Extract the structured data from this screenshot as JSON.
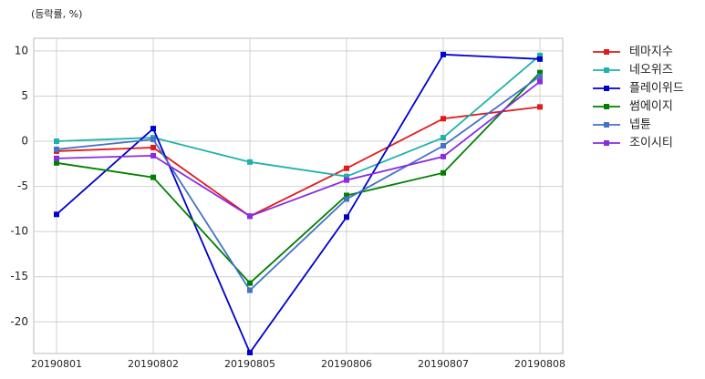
{
  "chart_data": {
    "type": "line",
    "annotation": "(등락률, %)",
    "categories": [
      "20190801",
      "20190802",
      "20190805",
      "20190806",
      "20190807",
      "20190808"
    ],
    "series": [
      {
        "name": "테마지수",
        "color": "#e31a1c",
        "values": [
          -1.1,
          -0.7,
          -8.3,
          -3.0,
          2.5,
          3.8
        ]
      },
      {
        "name": "네오위즈",
        "color": "#20b2aa",
        "values": [
          0.0,
          0.4,
          -2.3,
          -3.9,
          0.4,
          9.5
        ]
      },
      {
        "name": "플레이위드",
        "color": "#0000cd",
        "values": [
          -8.1,
          1.4,
          -23.4,
          -8.4,
          9.6,
          9.1
        ]
      },
      {
        "name": "썸에이지",
        "color": "#008000",
        "values": [
          -2.4,
          -4.0,
          -15.7,
          -6.0,
          -3.5,
          7.6
        ]
      },
      {
        "name": "넵튠",
        "color": "#4472c4",
        "values": [
          -0.9,
          0.2,
          -16.5,
          -6.4,
          -0.5,
          7.2
        ]
      },
      {
        "name": "조이시티",
        "color": "#8a2be2",
        "values": [
          -1.9,
          -1.6,
          -8.3,
          -4.3,
          -1.7,
          6.6
        ]
      }
    ],
    "ylim": [
      -23.5,
      11.4
    ],
    "yticks": [
      -20,
      -15,
      -10,
      -5,
      0,
      5,
      10
    ],
    "grid": true,
    "legend": "outside-right"
  }
}
